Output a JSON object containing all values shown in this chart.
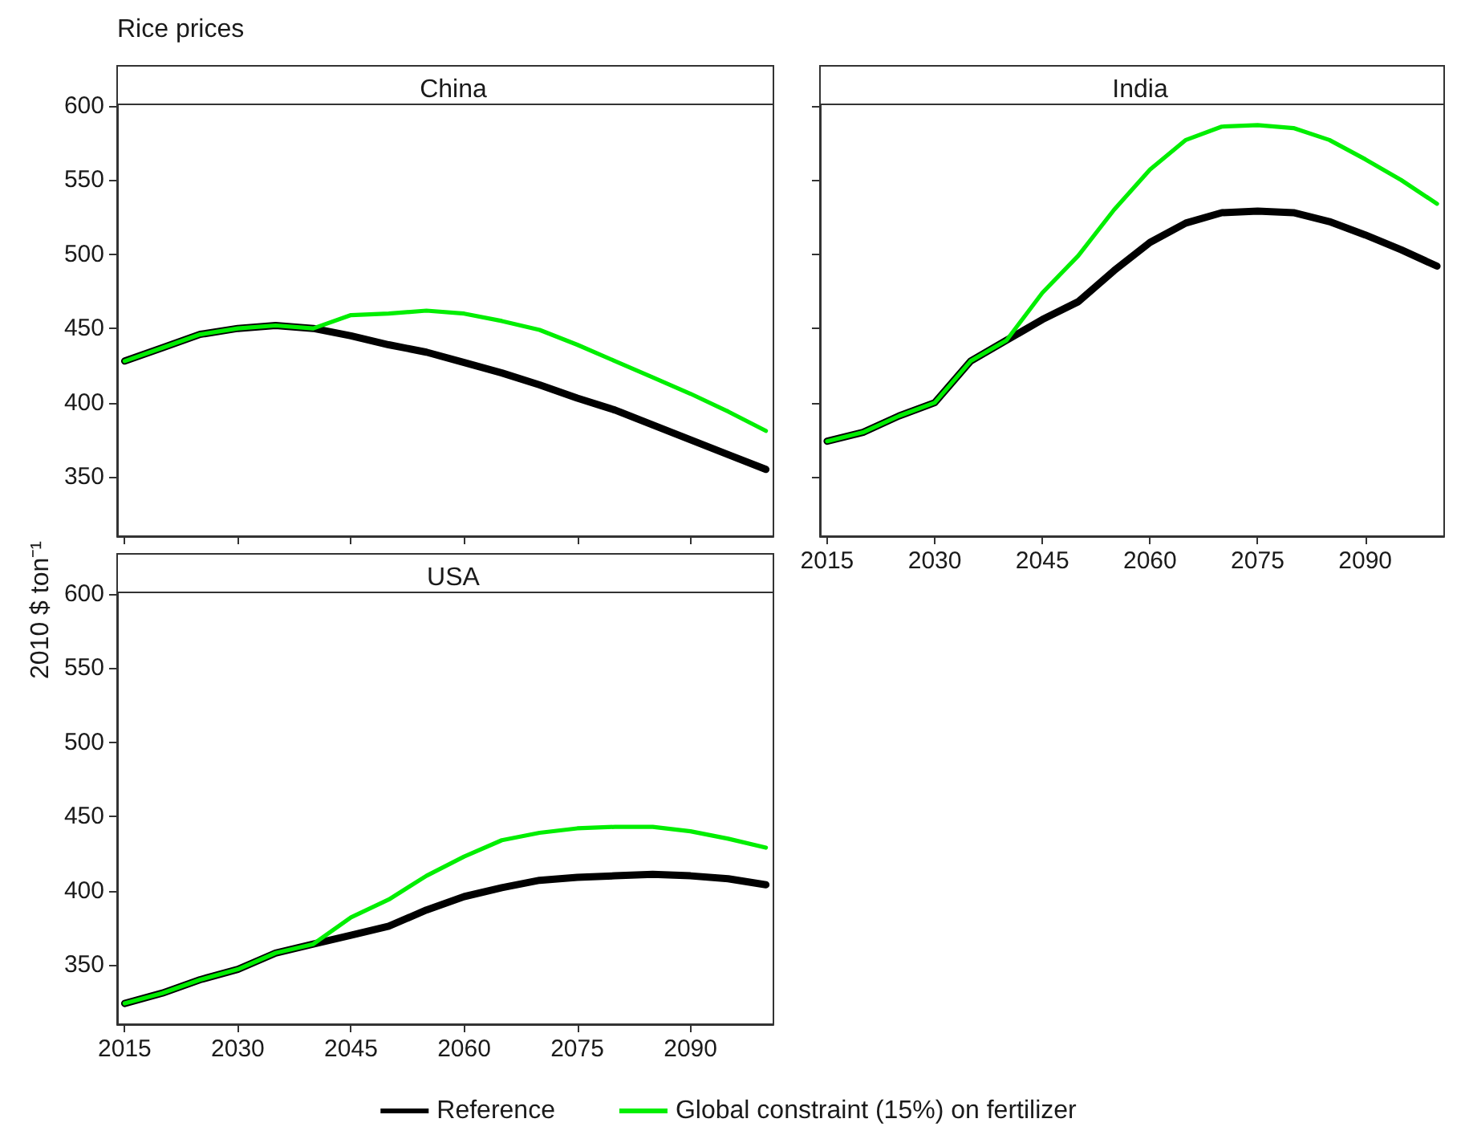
{
  "chart_data": [
    {
      "type": "line",
      "title": "China",
      "annotations": [
        "Rice prices"
      ],
      "ylabel": "2010 $ ton⁻¹",
      "x": [
        2015,
        2020,
        2025,
        2030,
        2035,
        2040,
        2045,
        2050,
        2055,
        2060,
        2065,
        2070,
        2075,
        2080,
        2085,
        2090,
        2095,
        2100
      ],
      "xlim": [
        2014,
        2101
      ],
      "xticks": [
        2015,
        2030,
        2045,
        2060,
        2075,
        2090
      ],
      "ylim": [
        310,
        601
      ],
      "yticks": [
        350,
        400,
        450,
        500,
        550,
        600
      ],
      "tick_labels": "y",
      "grid": false,
      "legend": false,
      "marker": "none",
      "line_style": "solid",
      "series": [
        {
          "color": "#000000",
          "values": [
            428,
            437,
            446,
            450,
            452,
            450,
            445,
            439,
            434,
            427,
            420,
            412,
            403,
            395,
            385,
            375,
            365,
            355
          ]
        },
        {
          "color": "#00ee00",
          "values": [
            428,
            437,
            446,
            450,
            452,
            450,
            459,
            460,
            462,
            460,
            455,
            449,
            439,
            428,
            417,
            406,
            394,
            381
          ]
        }
      ]
    },
    {
      "type": "line",
      "title": "India",
      "x": [
        2015,
        2020,
        2025,
        2030,
        2035,
        2040,
        2045,
        2050,
        2055,
        2060,
        2065,
        2070,
        2075,
        2080,
        2085,
        2090,
        2095,
        2100
      ],
      "xlim": [
        2014,
        2101
      ],
      "xticks": [
        2015,
        2030,
        2045,
        2060,
        2075,
        2090
      ],
      "ylim": [
        310,
        601
      ],
      "yticks": [
        350,
        400,
        450,
        500,
        550,
        600
      ],
      "tick_labels": "x",
      "grid": false,
      "legend": false,
      "marker": "none",
      "line_style": "solid",
      "series": [
        {
          "color": "#000000",
          "values": [
            374,
            380,
            391,
            400,
            428,
            442,
            456,
            468,
            489,
            508,
            521,
            528,
            529,
            528,
            522,
            513,
            503,
            492
          ]
        },
        {
          "color": "#00ee00",
          "values": [
            374,
            380,
            391,
            400,
            428,
            442,
            474,
            499,
            530,
            557,
            577,
            586,
            587,
            585,
            577,
            564,
            550,
            534
          ]
        }
      ]
    },
    {
      "type": "line",
      "title": "USA",
      "x": [
        2015,
        2020,
        2025,
        2030,
        2035,
        2040,
        2045,
        2050,
        2055,
        2060,
        2065,
        2070,
        2075,
        2080,
        2085,
        2090,
        2095,
        2100
      ],
      "xlim": [
        2014,
        2101
      ],
      "xticks": [
        2015,
        2030,
        2045,
        2060,
        2075,
        2090
      ],
      "ylim": [
        310,
        601
      ],
      "yticks": [
        350,
        400,
        450,
        500,
        550,
        600
      ],
      "grid": false,
      "legend": "bottom",
      "marker": "none",
      "line_style": "solid",
      "series": [
        {
          "name": "Reference",
          "color": "#000000",
          "values": [
            324,
            331,
            340,
            347,
            358,
            364,
            370,
            376,
            387,
            396,
            402,
            407,
            409,
            410,
            411,
            410,
            408,
            404
          ]
        },
        {
          "name": "Global constraint (15%) on fertilizer",
          "color": "#00ee00",
          "values": [
            324,
            331,
            340,
            347,
            358,
            364,
            382,
            394,
            410,
            423,
            434,
            439,
            442,
            443,
            443,
            440,
            435,
            429
          ]
        }
      ]
    }
  ]
}
